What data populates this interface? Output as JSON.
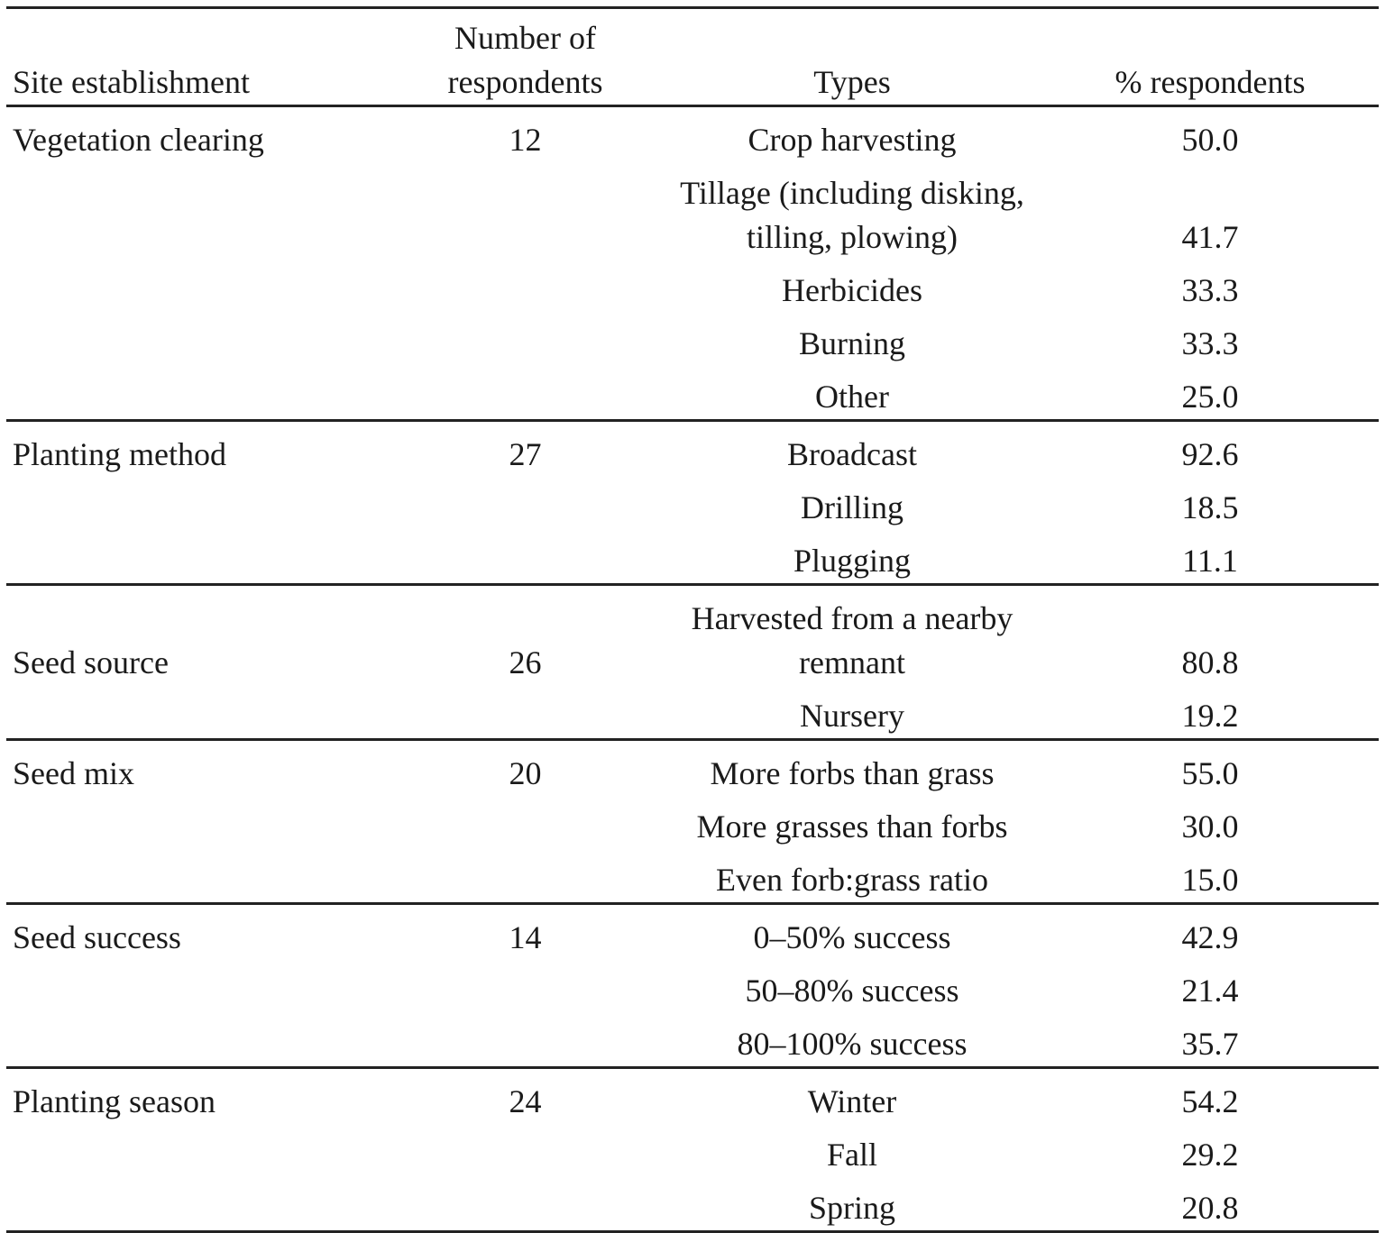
{
  "table": {
    "headers": [
      "Site establishment",
      "Number of respondents",
      "Types",
      "% respondents"
    ],
    "groups": [
      {
        "site": "Vegetation clearing",
        "respondents": "12",
        "rows": [
          {
            "type": "Crop harvesting",
            "percent": "50.0"
          },
          {
            "type": "Tillage (including disking, tilling, plowing)",
            "percent": "41.7"
          },
          {
            "type": "Herbicides",
            "percent": "33.3"
          },
          {
            "type": "Burning",
            "percent": "33.3"
          },
          {
            "type": "Other",
            "percent": "25.0"
          }
        ]
      },
      {
        "site": "Planting method",
        "respondents": "27",
        "rows": [
          {
            "type": "Broadcast",
            "percent": "92.6"
          },
          {
            "type": "Drilling",
            "percent": "18.5"
          },
          {
            "type": "Plugging",
            "percent": "11.1"
          }
        ]
      },
      {
        "site": "Seed source",
        "respondents": "26",
        "rows": [
          {
            "type": "Harvested from a nearby remnant",
            "percent": "80.8"
          },
          {
            "type": "Nursery",
            "percent": "19.2"
          }
        ]
      },
      {
        "site": "Seed mix",
        "respondents": "20",
        "rows": [
          {
            "type": "More forbs than grass",
            "percent": "55.0"
          },
          {
            "type": "More grasses than forbs",
            "percent": "30.0"
          },
          {
            "type": "Even forb:grass ratio",
            "percent": "15.0"
          }
        ]
      },
      {
        "site": "Seed success",
        "respondents": "14",
        "rows": [
          {
            "type": "0–50% success",
            "percent": "42.9"
          },
          {
            "type": "50–80% success",
            "percent": "21.4"
          },
          {
            "type": "80–100% success",
            "percent": "35.7"
          }
        ]
      },
      {
        "site": "Planting season",
        "respondents": "24",
        "rows": [
          {
            "type": "Winter",
            "percent": "54.2"
          },
          {
            "type": "Fall",
            "percent": "29.2"
          },
          {
            "type": "Spring",
            "percent": "20.8"
          }
        ]
      }
    ]
  }
}
